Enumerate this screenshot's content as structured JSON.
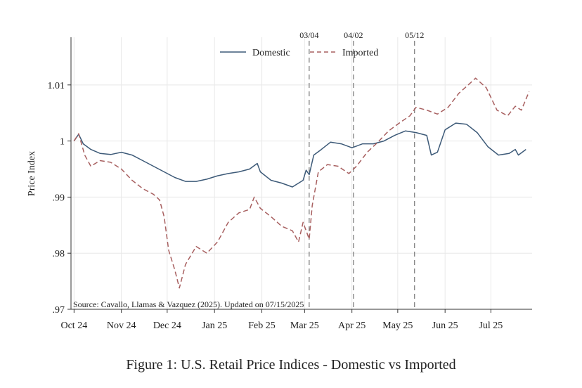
{
  "caption": "Figure 1: U.S. Retail Price Indices - Domestic vs Imported",
  "colors": {
    "domestic": "#3d5a78",
    "imported": "#a86060",
    "grid": "#e8e8e8",
    "axis": "#333333",
    "event": "#777777"
  },
  "chart_data": {
    "type": "line",
    "ylabel": "Price Index",
    "xlabel": "",
    "x_ticks": [
      "Oct 24",
      "Nov 24",
      "Dec 24",
      "Jan 25",
      "Feb 25",
      "Mar 25",
      "Apr 25",
      "May 25",
      "Jun 25",
      "Jul 25"
    ],
    "y_ticks": [
      ".97",
      ".98",
      ".99",
      "1",
      "1.01"
    ],
    "y_tick_values": [
      0.97,
      0.98,
      0.99,
      1.0,
      1.01
    ],
    "ylim": [
      0.97,
      1.0185
    ],
    "xlim": [
      "2024-09-29",
      "2025-07-28"
    ],
    "grid": true,
    "legend": "top-center",
    "source_note": "Source: Cavallo, Llamas & Vazquez (2025). Updated on 07/15/2025",
    "event_lines": [
      {
        "date": "2025-03-04",
        "label": "03/04"
      },
      {
        "date": "2025-04-02",
        "label": "04/02"
      },
      {
        "date": "2025-05-12",
        "label": "05/12"
      }
    ],
    "series": [
      {
        "name": "Domestic",
        "style": "solid",
        "points": [
          [
            "2024-10-01",
            1.0
          ],
          [
            "2024-10-04",
            1.0012
          ],
          [
            "2024-10-07",
            0.9995
          ],
          [
            "2024-10-12",
            0.9985
          ],
          [
            "2024-10-18",
            0.9978
          ],
          [
            "2024-10-25",
            0.9976
          ],
          [
            "2024-11-01",
            0.998
          ],
          [
            "2024-11-08",
            0.9975
          ],
          [
            "2024-11-15",
            0.9965
          ],
          [
            "2024-11-22",
            0.9955
          ],
          [
            "2024-11-29",
            0.9945
          ],
          [
            "2024-12-06",
            0.9935
          ],
          [
            "2024-12-13",
            0.9928
          ],
          [
            "2024-12-20",
            0.9928
          ],
          [
            "2024-12-27",
            0.9932
          ],
          [
            "2025-01-03",
            0.9938
          ],
          [
            "2025-01-10",
            0.9942
          ],
          [
            "2025-01-17",
            0.9945
          ],
          [
            "2025-01-24",
            0.995
          ],
          [
            "2025-01-29",
            0.996
          ],
          [
            "2025-01-31",
            0.9945
          ],
          [
            "2025-02-07",
            0.993
          ],
          [
            "2025-02-14",
            0.9925
          ],
          [
            "2025-02-21",
            0.9918
          ],
          [
            "2025-02-28",
            0.993
          ],
          [
            "2025-03-02",
            0.9948
          ],
          [
            "2025-03-04",
            0.994
          ],
          [
            "2025-03-07",
            0.9975
          ],
          [
            "2025-03-12",
            0.9985
          ],
          [
            "2025-03-18",
            0.9998
          ],
          [
            "2025-03-25",
            0.9995
          ],
          [
            "2025-04-01",
            0.9988
          ],
          [
            "2025-04-08",
            0.9995
          ],
          [
            "2025-04-15",
            0.9995
          ],
          [
            "2025-04-22",
            1.0
          ],
          [
            "2025-04-29",
            1.001
          ],
          [
            "2025-05-06",
            1.0018
          ],
          [
            "2025-05-13",
            1.0015
          ],
          [
            "2025-05-20",
            1.001
          ],
          [
            "2025-05-23",
            0.9975
          ],
          [
            "2025-05-27",
            0.998
          ],
          [
            "2025-06-01",
            1.002
          ],
          [
            "2025-06-08",
            1.0032
          ],
          [
            "2025-06-15",
            1.003
          ],
          [
            "2025-06-22",
            1.0015
          ],
          [
            "2025-06-29",
            0.999
          ],
          [
            "2025-07-06",
            0.9975
          ],
          [
            "2025-07-13",
            0.9978
          ],
          [
            "2025-07-17",
            0.9985
          ],
          [
            "2025-07-19",
            0.9975
          ],
          [
            "2025-07-24",
            0.9985
          ]
        ]
      },
      {
        "name": "Imported",
        "style": "dashed",
        "points": [
          [
            "2024-10-01",
            1.0
          ],
          [
            "2024-10-04",
            1.0013
          ],
          [
            "2024-10-08",
            0.9975
          ],
          [
            "2024-10-12",
            0.9955
          ],
          [
            "2024-10-18",
            0.9965
          ],
          [
            "2024-10-25",
            0.9962
          ],
          [
            "2024-11-01",
            0.995
          ],
          [
            "2024-11-08",
            0.993
          ],
          [
            "2024-11-15",
            0.9915
          ],
          [
            "2024-11-22",
            0.9905
          ],
          [
            "2024-11-26",
            0.9895
          ],
          [
            "2024-11-29",
            0.9865
          ],
          [
            "2024-12-02",
            0.9805
          ],
          [
            "2024-12-06",
            0.977
          ],
          [
            "2024-12-09",
            0.9738
          ],
          [
            "2024-12-13",
            0.978
          ],
          [
            "2024-12-20",
            0.9812
          ],
          [
            "2024-12-27",
            0.98
          ],
          [
            "2025-01-03",
            0.982
          ],
          [
            "2025-01-10",
            0.9855
          ],
          [
            "2025-01-17",
            0.9872
          ],
          [
            "2025-01-24",
            0.9878
          ],
          [
            "2025-01-27",
            0.99
          ],
          [
            "2025-01-31",
            0.988
          ],
          [
            "2025-02-07",
            0.9865
          ],
          [
            "2025-02-14",
            0.9848
          ],
          [
            "2025-02-21",
            0.984
          ],
          [
            "2025-02-25",
            0.982
          ],
          [
            "2025-02-28",
            0.9855
          ],
          [
            "2025-03-04",
            0.9825
          ],
          [
            "2025-03-06",
            0.9885
          ],
          [
            "2025-03-10",
            0.9945
          ],
          [
            "2025-03-16",
            0.9958
          ],
          [
            "2025-03-23",
            0.9955
          ],
          [
            "2025-03-30",
            0.9942
          ],
          [
            "2025-04-04",
            0.9955
          ],
          [
            "2025-04-11",
            0.998
          ],
          [
            "2025-04-18",
            0.9998
          ],
          [
            "2025-04-25",
            1.0018
          ],
          [
            "2025-05-02",
            1.0032
          ],
          [
            "2025-05-09",
            1.0045
          ],
          [
            "2025-05-13",
            1.006
          ],
          [
            "2025-05-20",
            1.0055
          ],
          [
            "2025-05-27",
            1.0048
          ],
          [
            "2025-06-03",
            1.006
          ],
          [
            "2025-06-10",
            1.0085
          ],
          [
            "2025-06-17",
            1.0102
          ],
          [
            "2025-06-21",
            1.0112
          ],
          [
            "2025-06-28",
            1.0095
          ],
          [
            "2025-07-05",
            1.0055
          ],
          [
            "2025-07-12",
            1.0045
          ],
          [
            "2025-07-17",
            1.0062
          ],
          [
            "2025-07-21",
            1.0055
          ],
          [
            "2025-07-26",
            1.0088
          ]
        ]
      }
    ]
  }
}
